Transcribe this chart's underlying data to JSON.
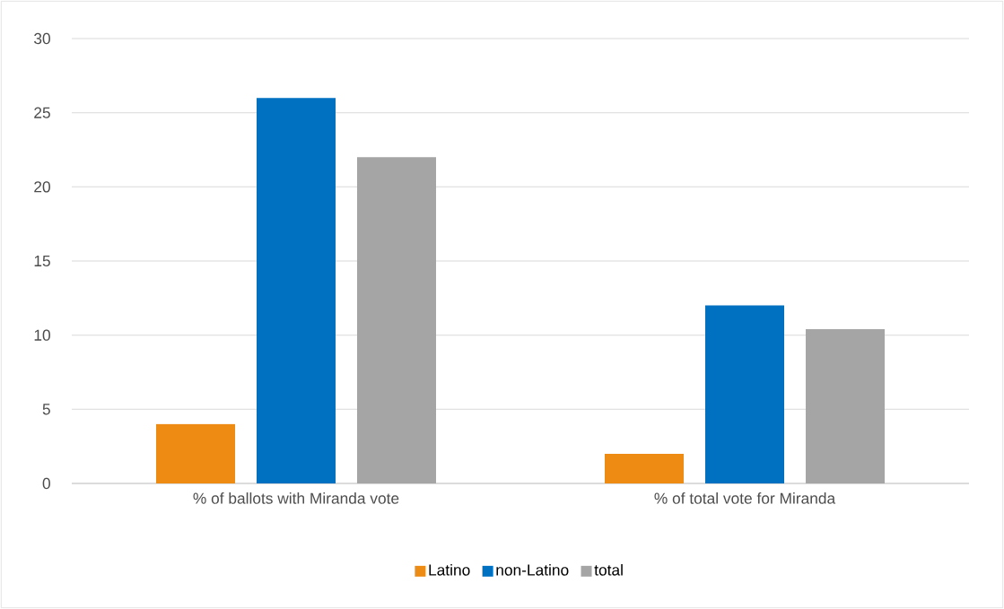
{
  "chart_data": {
    "type": "bar",
    "categories": [
      "% of ballots with Miranda vote",
      "% of total vote for Miranda"
    ],
    "series": [
      {
        "name": "Latino",
        "color": "#ed8b12",
        "values": [
          4,
          2
        ]
      },
      {
        "name": "non-Latino",
        "color": "#0070c0",
        "values": [
          26,
          12
        ]
      },
      {
        "name": "total",
        "color": "#a5a5a5",
        "values": [
          22,
          10.4
        ]
      }
    ],
    "ylim": [
      0,
      30
    ],
    "yticks": [
      0,
      5,
      10,
      15,
      20,
      25,
      30
    ],
    "grid": "y",
    "legend": "bottom"
  }
}
